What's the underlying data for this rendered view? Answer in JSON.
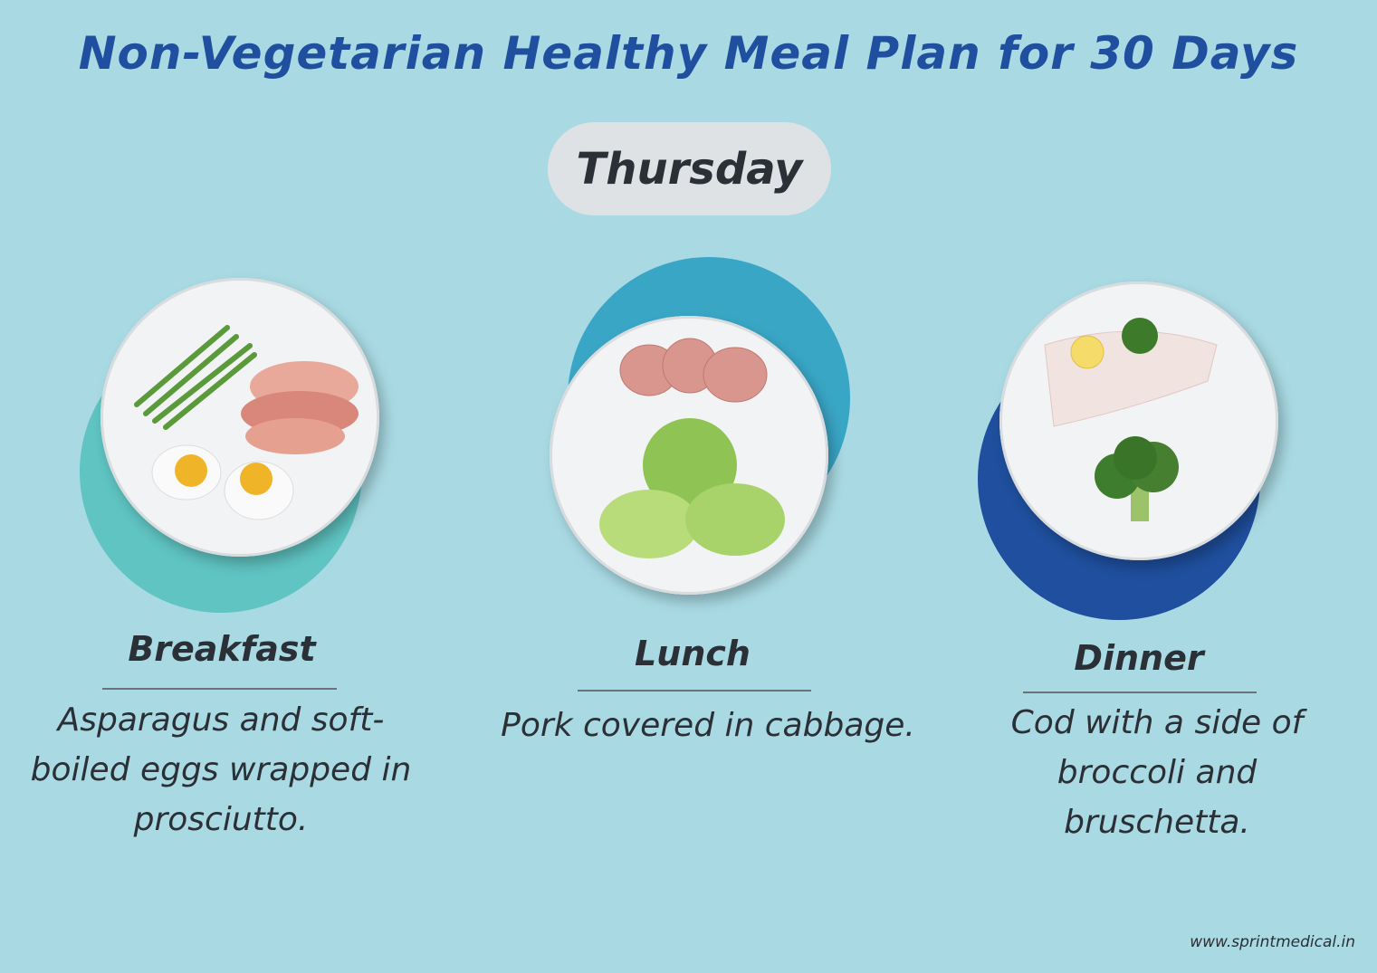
{
  "title": "Non-Vegetarian Healthy Meal Plan for 30 Days",
  "day": "Thursday",
  "meals": [
    {
      "name": "Breakfast",
      "description": "Asparagus and soft-boiled eggs wrapped in prosciutto.",
      "accent": "#5fc4c2"
    },
    {
      "name": "Lunch",
      "description": "Pork covered in cabbage.",
      "accent": "#3aa6c6"
    },
    {
      "name": "Dinner",
      "description": "Cod with a side of broccoli and bruschetta.",
      "accent": "#1f4f9e"
    }
  ],
  "website": "www.sprintmedical.in"
}
